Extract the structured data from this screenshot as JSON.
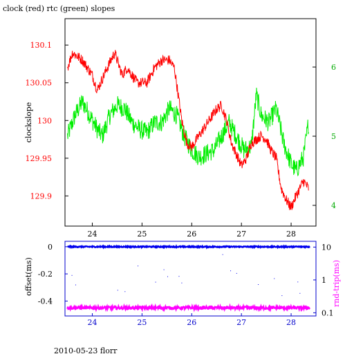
{
  "title": "clock (red) rtc (green) slopes",
  "footer": "2010-05-23 florr",
  "colors": {
    "clock": "#ff0000",
    "rtc": "#00ee00",
    "offset": "#0000ee",
    "rndtrip": "#ff00ff",
    "axis": "#000000",
    "bottom_axis": "#0000cc"
  },
  "chart_data": [
    {
      "type": "line",
      "ylabel": "clockslope",
      "xlim": [
        23.45,
        28.5
      ],
      "ylim": [
        129.86,
        130.135
      ],
      "y2lim": [
        3.7,
        6.7
      ],
      "x_ticks": [
        24,
        25,
        26,
        27,
        28
      ],
      "x_tick_labels": [
        "24",
        "25",
        "26",
        "27",
        "28"
      ],
      "y_ticks": [
        129.9,
        129.95,
        130,
        130.05,
        130.1
      ],
      "y_tick_labels": [
        "129.9",
        "129.95",
        "130",
        "130.05",
        "130.1"
      ],
      "y2_ticks": [
        4,
        5,
        6
      ],
      "y2_tick_labels": [
        "4",
        "5",
        "6"
      ],
      "series": [
        {
          "axis": "left",
          "color": "#ff0000",
          "x": [
            23.5,
            23.6,
            23.8,
            24.0,
            24.1,
            24.3,
            24.45,
            24.6,
            24.7,
            24.9,
            25.1,
            25.25,
            25.4,
            25.55,
            25.65,
            25.8,
            25.9,
            26.0,
            26.1,
            26.3,
            26.5,
            26.6,
            26.7,
            26.8,
            26.9,
            27.0,
            27.1,
            27.2,
            27.4,
            27.5,
            27.6,
            27.7,
            27.8,
            27.9,
            28.0,
            28.1,
            28.25,
            28.35
          ],
          "y": [
            130.07,
            130.09,
            130.08,
            130.06,
            130.04,
            130.07,
            130.09,
            130.06,
            130.07,
            130.05,
            130.05,
            130.07,
            130.08,
            130.08,
            130.07,
            130.0,
            129.97,
            129.965,
            129.975,
            129.995,
            130.015,
            130.02,
            130.0,
            129.97,
            129.955,
            129.94,
            129.95,
            129.97,
            129.98,
            129.975,
            129.96,
            129.95,
            129.91,
            129.895,
            129.885,
            129.9,
            129.92,
            129.91
          ]
        },
        {
          "axis": "right",
          "color": "#00ee00",
          "x": [
            23.5,
            23.65,
            23.8,
            23.95,
            24.1,
            24.2,
            24.35,
            24.5,
            24.65,
            24.8,
            24.95,
            25.1,
            25.25,
            25.4,
            25.55,
            25.7,
            25.85,
            26.0,
            26.15,
            26.3,
            26.45,
            26.6,
            26.75,
            26.9,
            27.05,
            27.2,
            27.3,
            27.4,
            27.55,
            27.7,
            27.85,
            28.0,
            28.1,
            28.25,
            28.35
          ],
          "y": [
            5.0,
            5.3,
            5.5,
            5.3,
            5.1,
            5.0,
            5.3,
            5.45,
            5.4,
            5.2,
            5.1,
            5.05,
            5.2,
            5.2,
            5.4,
            5.3,
            5.0,
            4.8,
            4.7,
            4.75,
            4.8,
            5.0,
            5.2,
            5.0,
            4.8,
            4.85,
            5.6,
            5.3,
            5.2,
            5.4,
            4.9,
            4.6,
            4.5,
            4.7,
            5.2
          ]
        }
      ]
    },
    {
      "type": "scatter",
      "ylabel": "offset(ms)",
      "y2label": "rnd-trip(ms)",
      "xlim": [
        23.45,
        28.5
      ],
      "ylim": [
        -0.51,
        0.04
      ],
      "y2_scale": "log",
      "y2lim": [
        0.08,
        15
      ],
      "x_ticks": [
        24,
        25,
        26,
        27,
        28
      ],
      "x_tick_labels": [
        "24",
        "25",
        "26",
        "27",
        "28"
      ],
      "y_ticks": [
        0,
        -0.2,
        -0.4
      ],
      "y_tick_labels": [
        "0",
        "-0.2",
        "-0.4"
      ],
      "y2_ticks": [
        10,
        1,
        0.1
      ],
      "y2_tick_labels": [
        "10",
        "1",
        "0.1"
      ],
      "series": [
        {
          "axis": "left",
          "color": "#0000ee",
          "y": 0
        },
        {
          "axis": "left",
          "color": "#ff00ff",
          "y": -0.45
        }
      ]
    }
  ]
}
